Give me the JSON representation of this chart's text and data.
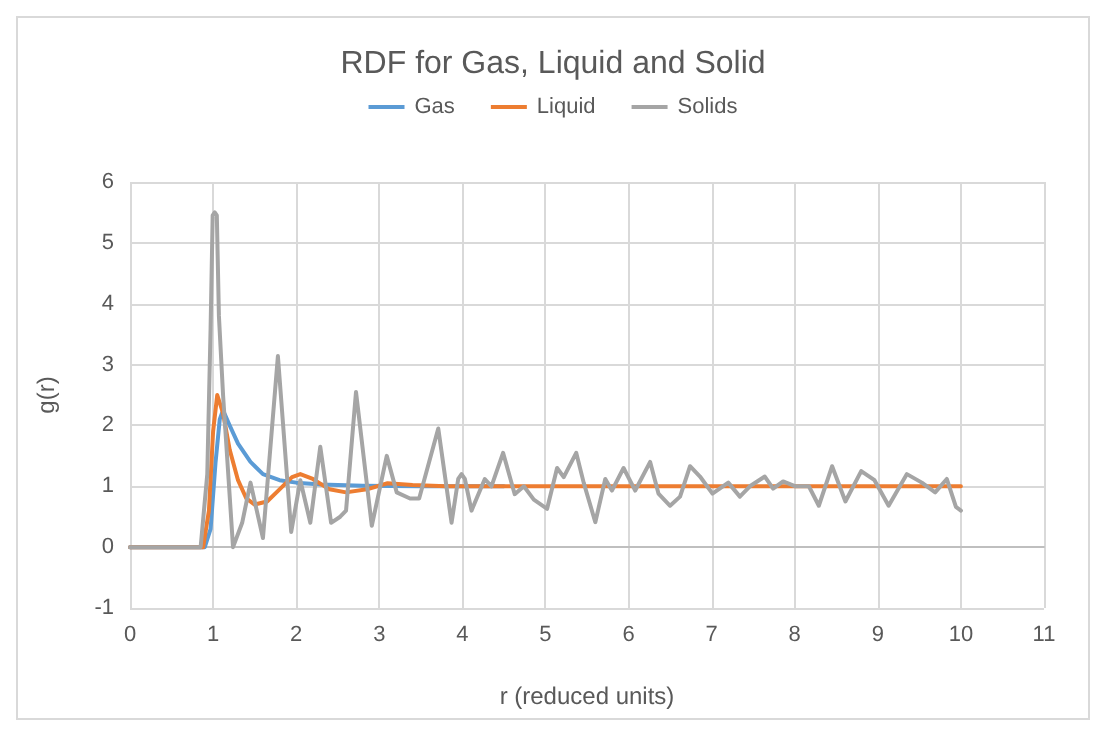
{
  "chart_data": {
    "type": "line",
    "title": "RDF for Gas, Liquid and Solid",
    "xlabel": "r (reduced units)",
    "ylabel": "g(r)",
    "xlim": [
      0,
      11
    ],
    "xticks": [
      0,
      1,
      2,
      3,
      4,
      5,
      6,
      7,
      8,
      9,
      10,
      11
    ],
    "ylim": [
      -1,
      6
    ],
    "yticks": [
      -1,
      0,
      1,
      2,
      3,
      4,
      5,
      6
    ],
    "grid": true,
    "legend": "top",
    "marker": "none",
    "line_style": "solid",
    "series": [
      {
        "name": "Gas",
        "color": "#5b9bd5",
        "x": [
          0,
          0.5,
          0.9,
          0.97,
          1.03,
          1.08,
          1.12,
          1.2,
          1.3,
          1.45,
          1.6,
          1.8,
          2.0,
          2.3,
          2.8,
          3.5,
          4.5
        ],
        "values": [
          0,
          0,
          0,
          0.3,
          1.4,
          2.1,
          2.25,
          2.0,
          1.7,
          1.4,
          1.2,
          1.1,
          1.06,
          1.03,
          1.01,
          1.0,
          1.0
        ]
      },
      {
        "name": "Liquid",
        "color": "#ed7d31",
        "x": [
          0,
          0.5,
          0.88,
          0.95,
          1.0,
          1.05,
          1.12,
          1.2,
          1.3,
          1.4,
          1.5,
          1.65,
          1.8,
          1.95,
          2.05,
          2.2,
          2.4,
          2.6,
          2.85,
          3.1,
          3.4,
          3.8,
          4.5,
          6,
          8,
          10
        ],
        "values": [
          0,
          0,
          0,
          0.6,
          1.9,
          2.5,
          2.2,
          1.6,
          1.1,
          0.8,
          0.7,
          0.75,
          0.95,
          1.15,
          1.2,
          1.12,
          0.95,
          0.9,
          0.95,
          1.05,
          1.02,
          1.0,
          1.0,
          1.0,
          1.0,
          1.0
        ]
      },
      {
        "name": "Solids",
        "color": "#a5a5a5",
        "x": [
          0,
          0.5,
          0.85,
          0.93,
          0.97,
          0.995,
          1.02,
          1.045,
          1.07,
          1.12,
          1.24,
          1.35,
          1.45,
          1.6,
          1.78,
          1.94,
          2.05,
          2.17,
          2.29,
          2.42,
          2.53,
          2.6,
          2.72,
          2.91,
          3.09,
          3.21,
          3.37,
          3.48,
          3.71,
          3.87,
          3.95,
          3.99,
          4.03,
          4.11,
          4.27,
          4.35,
          4.49,
          4.63,
          4.74,
          4.86,
          5.02,
          5.14,
          5.22,
          5.37,
          5.46,
          5.6,
          5.72,
          5.8,
          5.94,
          6.08,
          6.26,
          6.36,
          6.5,
          6.62,
          6.74,
          6.86,
          7.01,
          7.2,
          7.34,
          7.46,
          7.64,
          7.74,
          7.86,
          8.01,
          8.17,
          8.29,
          8.45,
          8.61,
          8.8,
          8.96,
          9.13,
          9.35,
          9.53,
          9.69,
          9.83,
          9.94,
          10
        ],
        "values": [
          0,
          0,
          0,
          1.2,
          3.6,
          5.45,
          5.5,
          5.45,
          3.8,
          2.5,
          0,
          0.4,
          1.06,
          0.15,
          3.14,
          0.25,
          1.1,
          0.4,
          1.65,
          0.4,
          0.5,
          0.6,
          2.55,
          0.35,
          1.5,
          0.9,
          0.8,
          0.8,
          1.95,
          0.4,
          1.12,
          1.2,
          1.12,
          0.6,
          1.12,
          1.0,
          1.55,
          0.87,
          1.0,
          0.78,
          0.63,
          1.3,
          1.15,
          1.55,
          1.06,
          0.41,
          1.12,
          0.93,
          1.3,
          0.93,
          1.4,
          0.88,
          0.68,
          0.83,
          1.33,
          1.16,
          0.88,
          1.06,
          0.83,
          1.0,
          1.16,
          0.96,
          1.08,
          1.0,
          1.0,
          0.68,
          1.33,
          0.75,
          1.25,
          1.1,
          0.68,
          1.2,
          1.06,
          0.9,
          1.12,
          0.66,
          0.6
        ]
      }
    ]
  }
}
